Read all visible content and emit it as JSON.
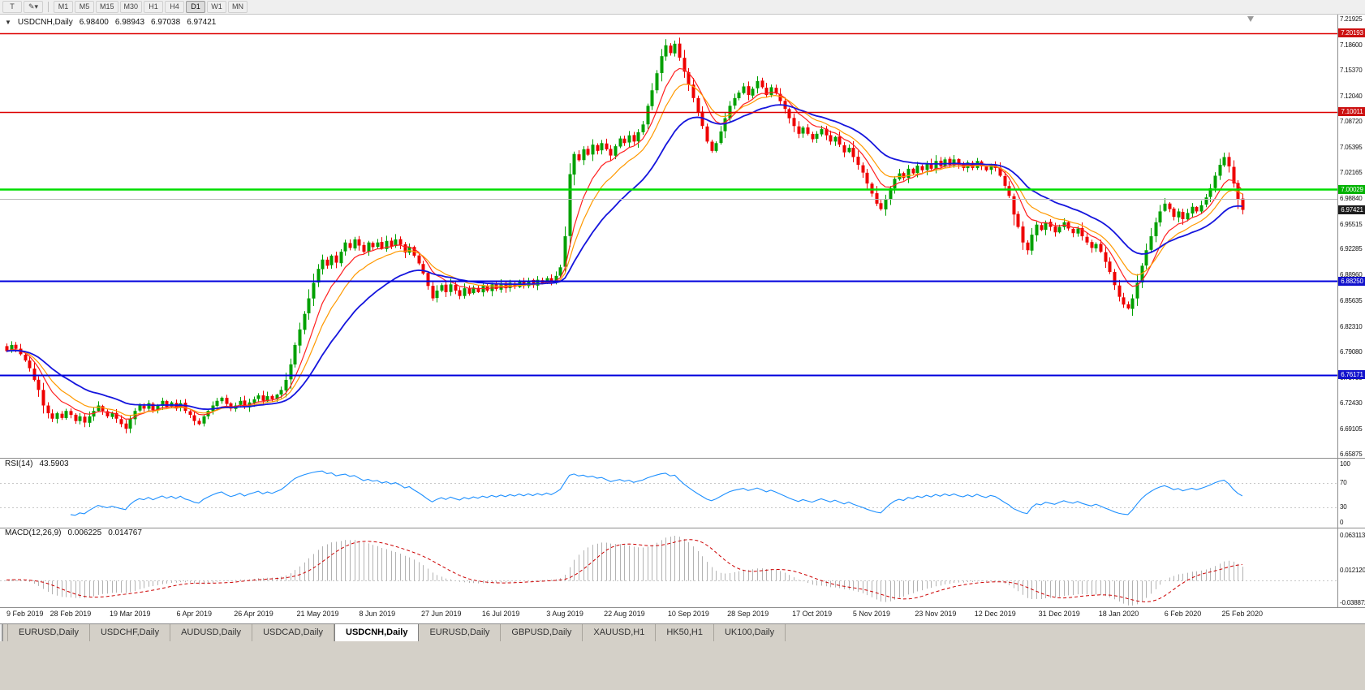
{
  "toolbar": {
    "tools": [
      {
        "name": "text-tool",
        "glyph": "T"
      },
      {
        "name": "draw-objects-tool",
        "glyph": "✎",
        "dropdown": "▾"
      }
    ],
    "timeframes": [
      "M1",
      "M5",
      "M15",
      "M30",
      "H1",
      "H4",
      "D1",
      "W1",
      "MN"
    ],
    "active_timeframe": "D1"
  },
  "chart_header": {
    "collapse_glyph": "▼",
    "symbol": "USDCNH,Daily",
    "open": "6.98400",
    "high": "6.98943",
    "low": "6.97038",
    "close": "6.97421"
  },
  "price_scale": {
    "labels": [
      "7.21925",
      "7.18600",
      "7.15370",
      "7.12040",
      "7.08720",
      "7.05395",
      "7.02165",
      "6.98840",
      "6.95515",
      "6.92285",
      "6.88960",
      "6.85635",
      "6.82310",
      "6.79080",
      "6.75750",
      "6.72430",
      "6.69105",
      "6.65875"
    ],
    "badges": [
      {
        "text": "7.20193",
        "value": 7.20193,
        "color": "#cc1111"
      },
      {
        "text": "7.10011",
        "value": 7.10011,
        "color": "#cc1111"
      },
      {
        "text": "7.00029",
        "value": 7.00029,
        "color": "#00b300"
      },
      {
        "text": "6.97421",
        "value": 6.97421,
        "color": "#1c1c1c"
      },
      {
        "text": "6.88250",
        "value": 6.8825,
        "color": "#1111cc"
      },
      {
        "text": "6.76171",
        "value": 6.76171,
        "color": "#1111cc"
      }
    ]
  },
  "rsi_panel": {
    "label": "RSI(14)",
    "value": "43.5903",
    "scale_labels": [
      "100",
      "70",
      "30",
      "0"
    ],
    "guide_levels": [
      70,
      30
    ],
    "period": 14,
    "color": "#1e90ff"
  },
  "macd_panel": {
    "label": "MACD(12,26,9)",
    "value_main": "0.006225",
    "value_signal": "0.014767",
    "scale_labels": [
      "0.063113",
      "0.012120",
      "-0.038872"
    ],
    "fast": 12,
    "slow": 26,
    "signal": 9,
    "histogram_color": "#b2b2b2",
    "signal_color": "#cc0000"
  },
  "time_axis": [
    "9 Feb 2019",
    "28 Feb 2019",
    "19 Mar 2019",
    "6 Apr 2019",
    "26 Apr 2019",
    "21 May 2019",
    "8 Jun 2019",
    "27 Jun 2019",
    "16 Jul 2019",
    "3 Aug 2019",
    "22 Aug 2019",
    "10 Sep 2019",
    "28 Sep 2019",
    "17 Oct 2019",
    "5 Nov 2019",
    "23 Nov 2019",
    "12 Dec 2019",
    "31 Dec 2019",
    "18 Jan 2020",
    "6 Feb 2020",
    "25 Feb 2020"
  ],
  "tabs": [
    {
      "label": "EURUSD,Daily"
    },
    {
      "label": "USDCHF,Daily"
    },
    {
      "label": "AUDUSD,Daily"
    },
    {
      "label": "USDCAD,Daily"
    },
    {
      "label": "USDCNH,Daily",
      "active": true
    },
    {
      "label": "EURUSD,Daily"
    },
    {
      "label": "GBPUSD,Daily"
    },
    {
      "label": "XAUUSD,H1"
    },
    {
      "label": "HK50,H1"
    },
    {
      "label": "UK100,Daily"
    }
  ],
  "chart_data": {
    "type": "candlestick",
    "symbol": "USDCNH",
    "timeframe": "Daily",
    "last_ohlc": {
      "open": 6.984,
      "high": 6.98943,
      "low": 6.97038,
      "close": 6.97421
    },
    "price_range": [
      6.65875,
      7.21925
    ],
    "label_indices": [
      0,
      14,
      27,
      41,
      54,
      68,
      81,
      95,
      108,
      122,
      135,
      149,
      162,
      176,
      189,
      203,
      216,
      230,
      243,
      257,
      270
    ],
    "closes": [
      6.792,
      6.8,
      6.795,
      6.788,
      6.78,
      6.77,
      6.755,
      6.742,
      6.722,
      6.712,
      6.705,
      6.712,
      6.706,
      6.715,
      6.71,
      6.702,
      6.708,
      6.7,
      6.708,
      6.715,
      6.722,
      6.715,
      6.708,
      6.712,
      6.705,
      6.698,
      6.692,
      6.705,
      6.715,
      6.722,
      6.718,
      6.725,
      6.716,
      6.722,
      6.728,
      6.72,
      6.726,
      6.718,
      6.725,
      6.715,
      6.71,
      6.702,
      6.698,
      6.708,
      6.715,
      6.722,
      6.728,
      6.732,
      6.724,
      6.718,
      6.722,
      6.728,
      6.72,
      6.726,
      6.73,
      6.735,
      6.728,
      6.734,
      6.73,
      6.736,
      6.742,
      6.755,
      6.775,
      6.8,
      6.82,
      6.84,
      6.86,
      6.88,
      6.898,
      6.91,
      6.902,
      6.915,
      6.906,
      6.92,
      6.932,
      6.925,
      6.936,
      6.928,
      6.92,
      6.932,
      6.926,
      6.932,
      6.924,
      6.934,
      6.927,
      6.936,
      6.929,
      6.919,
      6.926,
      6.915,
      6.905,
      6.892,
      6.876,
      6.86,
      6.87,
      6.877,
      6.868,
      6.878,
      6.87,
      6.863,
      6.873,
      6.866,
      6.874,
      6.868,
      6.876,
      6.87,
      6.878,
      6.872,
      6.879,
      6.873,
      6.88,
      6.875,
      6.882,
      6.876,
      6.883,
      6.877,
      6.884,
      6.879,
      6.886,
      6.881,
      6.889,
      6.9,
      6.94,
      7.02,
      7.046,
      7.038,
      7.052,
      7.045,
      7.058,
      7.05,
      7.06,
      7.052,
      7.044,
      7.056,
      7.066,
      7.06,
      7.07,
      7.062,
      7.074,
      7.084,
      7.108,
      7.128,
      7.15,
      7.172,
      7.186,
      7.176,
      7.188,
      7.17,
      7.152,
      7.135,
      7.118,
      7.1,
      7.082,
      7.062,
      7.05,
      7.06,
      7.075,
      7.092,
      7.108,
      7.118,
      7.125,
      7.133,
      7.122,
      7.13,
      7.14,
      7.132,
      7.122,
      7.132,
      7.124,
      7.114,
      7.104,
      7.092,
      7.082,
      7.072,
      7.08,
      7.072,
      7.065,
      7.072,
      7.078,
      7.07,
      7.062,
      7.068,
      7.058,
      7.048,
      7.054,
      7.042,
      7.032,
      7.022,
      7.008,
      6.995,
      6.982,
      6.975,
      6.988,
      7.002,
      7.014,
      7.021,
      7.015,
      7.027,
      7.021,
      7.031,
      7.025,
      7.034,
      7.027,
      7.037,
      7.03,
      7.039,
      7.032,
      7.039,
      7.032,
      7.028,
      7.035,
      7.028,
      7.037,
      7.03,
      7.025,
      7.032,
      7.028,
      7.018,
      7.005,
      6.992,
      6.968,
      6.952,
      6.932,
      6.922,
      6.942,
      6.955,
      6.948,
      6.958,
      6.952,
      6.945,
      6.952,
      6.958,
      6.95,
      6.944,
      6.95,
      6.94,
      6.932,
      6.925,
      6.93,
      6.92,
      6.907,
      6.894,
      6.877,
      6.862,
      6.852,
      6.847,
      6.86,
      6.88,
      6.902,
      6.922,
      6.94,
      6.958,
      6.972,
      6.982,
      6.975,
      6.965,
      6.972,
      6.962,
      6.97,
      6.978,
      6.972,
      6.98,
      6.99,
      7.002,
      7.018,
      7.032,
      7.042,
      7.03,
      7.008,
      6.988,
      6.974
    ],
    "levels": [
      {
        "value": 7.20193,
        "color": "#dd0000",
        "width": 1.5
      },
      {
        "value": 7.10011,
        "color": "#dd0000",
        "width": 1.5
      },
      {
        "value": 7.00029,
        "color": "#00dd00",
        "width": 2.5
      },
      {
        "value": 6.9884,
        "color": "#b8b8b8",
        "width": 1
      },
      {
        "value": 6.8825,
        "color": "#0000dd",
        "width": 2
      },
      {
        "value": 6.76171,
        "color": "#0000dd",
        "width": 2
      }
    ],
    "moving_averages": [
      {
        "period": 8,
        "color": "#ff2020",
        "width": 1.2
      },
      {
        "period": 13,
        "color": "#ff9900",
        "width": 1.2
      },
      {
        "period": 26,
        "color": "#1515dd",
        "width": 1.8
      }
    ],
    "candle_up_color": "#00a000",
    "candle_down_color": "#ee0000"
  }
}
